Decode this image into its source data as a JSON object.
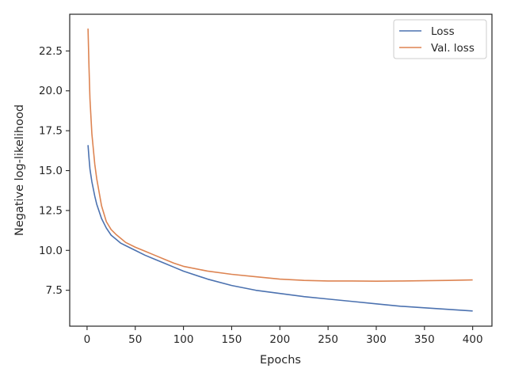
{
  "chart_data": {
    "type": "line",
    "title": "",
    "xlabel": "Epochs",
    "ylabel": "Negative log-likelihood",
    "xlim": [
      -18,
      420
    ],
    "ylim": [
      5.25,
      24.8
    ],
    "xticks": [
      0,
      50,
      100,
      150,
      200,
      250,
      300,
      350,
      400
    ],
    "yticks": [
      7.5,
      10.0,
      12.5,
      15.0,
      17.5,
      20.0,
      22.5
    ],
    "ytick_labels": [
      "7.5",
      "10.0",
      "12.5",
      "15.0",
      "17.5",
      "20.0",
      "22.5"
    ],
    "grid": false,
    "legend_position": "top-right",
    "series": [
      {
        "name": "Loss",
        "color": "#4c72b0",
        "x": [
          1,
          2,
          3,
          5,
          8,
          10,
          15,
          20,
          25,
          30,
          35,
          40,
          50,
          60,
          70,
          80,
          90,
          100,
          125,
          150,
          175,
          200,
          225,
          250,
          275,
          300,
          325,
          350,
          375,
          400
        ],
        "y": [
          16.6,
          15.8,
          15.1,
          14.3,
          13.4,
          12.9,
          12.0,
          11.4,
          10.95,
          10.7,
          10.45,
          10.3,
          10.0,
          9.7,
          9.45,
          9.2,
          8.95,
          8.7,
          8.2,
          7.8,
          7.5,
          7.3,
          7.1,
          6.95,
          6.8,
          6.65,
          6.5,
          6.4,
          6.3,
          6.2
        ]
      },
      {
        "name": "Val. loss",
        "color": "#dd8452",
        "x": [
          1,
          2,
          3,
          5,
          8,
          10,
          15,
          20,
          25,
          30,
          35,
          40,
          50,
          60,
          70,
          80,
          90,
          100,
          125,
          150,
          175,
          200,
          225,
          250,
          275,
          300,
          325,
          350,
          375,
          400
        ],
        "y": [
          23.9,
          21.5,
          19.5,
          17.3,
          15.4,
          14.5,
          12.8,
          11.8,
          11.3,
          11.0,
          10.75,
          10.5,
          10.2,
          9.95,
          9.7,
          9.45,
          9.2,
          9.0,
          8.7,
          8.5,
          8.35,
          8.2,
          8.12,
          8.08,
          8.08,
          8.07,
          8.08,
          8.1,
          8.12,
          8.15
        ]
      }
    ]
  }
}
